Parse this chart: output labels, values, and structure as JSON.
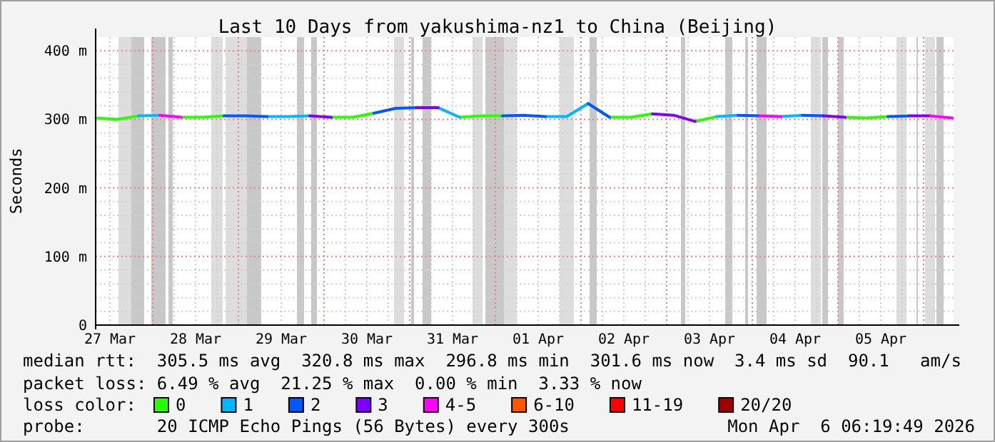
{
  "chart_data": {
    "type": "line",
    "title": "Last 10 Days from yakushima-nz1 to China (Beijing)",
    "ylabel": "Seconds",
    "x": [
      "2026-03-27T08:00",
      "2026-03-27T14:00",
      "2026-03-27T20:00",
      "2026-03-28T02:00",
      "2026-03-28T08:00",
      "2026-03-28T14:00",
      "2026-03-28T20:00",
      "2026-03-29T02:00",
      "2026-03-29T08:00",
      "2026-03-29T14:00",
      "2026-03-29T20:00",
      "2026-03-30T02:00",
      "2026-03-30T08:00",
      "2026-03-30T14:00",
      "2026-03-30T20:00",
      "2026-03-31T02:00",
      "2026-03-31T08:00",
      "2026-03-31T14:00",
      "2026-03-31T20:00",
      "2026-04-01T02:00",
      "2026-04-01T08:00",
      "2026-04-01T14:00",
      "2026-04-01T20:00",
      "2026-04-02T02:00",
      "2026-04-02T08:00",
      "2026-04-02T14:00",
      "2026-04-02T20:00",
      "2026-04-03T02:00",
      "2026-04-03T08:00",
      "2026-04-03T14:00",
      "2026-04-03T20:00",
      "2026-04-04T02:00",
      "2026-04-04T08:00",
      "2026-04-04T14:00",
      "2026-04-04T20:00",
      "2026-04-05T02:00",
      "2026-04-05T08:00",
      "2026-04-05T14:00",
      "2026-04-05T20:00",
      "2026-04-06T02:00",
      "2026-04-06T08:00"
    ],
    "series": [
      {
        "name": "0",
        "color": "#26ff00",
        "values": [
          302,
          300,
          305,
          null,
          303,
          303,
          305,
          null,
          null,
          null,
          null,
          303,
          303,
          309,
          null,
          null,
          null,
          303,
          305,
          305,
          null,
          null,
          null,
          null,
          303,
          303,
          308,
          null,
          297,
          304,
          null,
          null,
          null,
          null,
          null,
          303,
          302,
          304,
          null,
          null,
          null
        ]
      },
      {
        "name": "1",
        "color": "#00b8ff",
        "values": [
          null,
          null,
          305,
          306,
          null,
          null,
          null,
          null,
          304,
          304,
          305,
          null,
          null,
          null,
          null,
          null,
          317,
          303,
          null,
          null,
          null,
          304,
          304,
          323,
          null,
          null,
          null,
          null,
          null,
          304,
          306,
          null,
          304,
          306,
          null,
          null,
          null,
          null,
          null,
          null,
          null
        ]
      },
      {
        "name": "2",
        "color": "#0059ff",
        "values": [
          null,
          null,
          null,
          null,
          null,
          null,
          305,
          305,
          304,
          null,
          null,
          null,
          null,
          309,
          316,
          317,
          null,
          null,
          null,
          305,
          306,
          304,
          null,
          323,
          303,
          null,
          null,
          null,
          null,
          null,
          306,
          305,
          null,
          306,
          305,
          null,
          null,
          304,
          305,
          null,
          null
        ]
      },
      {
        "name": "3",
        "color": "#7e00ff",
        "values": [
          null,
          null,
          null,
          null,
          null,
          null,
          null,
          null,
          null,
          null,
          305,
          303,
          null,
          null,
          null,
          317,
          317,
          null,
          null,
          null,
          null,
          null,
          null,
          null,
          null,
          null,
          308,
          306,
          297,
          null,
          null,
          null,
          null,
          null,
          305,
          303,
          null,
          null,
          305,
          305,
          null
        ]
      },
      {
        "name": "4-5",
        "color": "#ff00ff",
        "values": [
          null,
          null,
          null,
          306,
          303,
          null,
          null,
          null,
          null,
          null,
          null,
          null,
          null,
          null,
          null,
          null,
          null,
          null,
          null,
          null,
          null,
          null,
          null,
          null,
          null,
          null,
          null,
          null,
          null,
          null,
          null,
          305,
          304,
          null,
          null,
          null,
          null,
          null,
          null,
          305,
          302
        ]
      },
      {
        "name": "6-10",
        "color": "#ff5500",
        "values": [
          null,
          null,
          null,
          null,
          null,
          null,
          null,
          null,
          null,
          null,
          null,
          null,
          null,
          null,
          null,
          null,
          null,
          null,
          null,
          null,
          null,
          null,
          null,
          null,
          null,
          null,
          null,
          null,
          null,
          null,
          null,
          null,
          null,
          null,
          null,
          null,
          null,
          null,
          null,
          null,
          null
        ]
      },
      {
        "name": "11-19",
        "color": "#ff0000",
        "values": [
          null,
          null,
          null,
          null,
          null,
          null,
          null,
          null,
          null,
          null,
          null,
          null,
          null,
          null,
          null,
          null,
          null,
          null,
          null,
          null,
          null,
          null,
          null,
          null,
          null,
          null,
          null,
          null,
          null,
          null,
          null,
          null,
          null,
          null,
          null,
          null,
          null,
          null,
          null,
          null,
          null
        ]
      },
      {
        "name": "20/20",
        "color": "#a10000",
        "values": [
          null,
          null,
          null,
          null,
          null,
          null,
          null,
          null,
          null,
          null,
          null,
          null,
          null,
          null,
          null,
          null,
          null,
          null,
          null,
          null,
          null,
          null,
          null,
          null,
          null,
          null,
          null,
          null,
          null,
          null,
          null,
          null,
          null,
          null,
          null,
          null,
          null,
          null,
          null,
          null,
          null
        ]
      }
    ],
    "xlim": [
      "2026-03-27T08:00",
      "2026-04-06T08:24"
    ],
    "xticks": [
      {
        "value": "2026-03-27T12:00",
        "label": "27 Mar"
      },
      {
        "value": "2026-03-28T00:00",
        "label": null
      },
      {
        "value": "2026-03-28T12:00",
        "label": "28 Mar"
      },
      {
        "value": "2026-03-29T00:00",
        "label": null
      },
      {
        "value": "2026-03-29T12:00",
        "label": "29 Mar"
      },
      {
        "value": "2026-03-30T00:00",
        "label": null
      },
      {
        "value": "2026-03-30T12:00",
        "label": "30 Mar"
      },
      {
        "value": "2026-03-31T00:00",
        "label": null
      },
      {
        "value": "2026-03-31T12:00",
        "label": "31 Mar"
      },
      {
        "value": "2026-04-01T00:00",
        "label": null
      },
      {
        "value": "2026-04-01T12:00",
        "label": "01 Apr"
      },
      {
        "value": "2026-04-02T00:00",
        "label": null
      },
      {
        "value": "2026-04-02T12:00",
        "label": "02 Apr"
      },
      {
        "value": "2026-04-03T00:00",
        "label": null
      },
      {
        "value": "2026-04-03T12:00",
        "label": "03 Apr"
      },
      {
        "value": "2026-04-04T00:00",
        "label": null
      },
      {
        "value": "2026-04-04T12:00",
        "label": "04 Apr"
      },
      {
        "value": "2026-04-05T00:00",
        "label": null
      },
      {
        "value": "2026-04-05T12:00",
        "label": "05 Apr"
      },
      {
        "value": "2026-04-06T00:00",
        "label": null
      }
    ],
    "ylim": [
      0,
      420
    ],
    "yticks": [
      {
        "value": 0,
        "label": "0"
      },
      {
        "value": 100,
        "label": "100 m"
      },
      {
        "value": 200,
        "label": "200 m"
      },
      {
        "value": 300,
        "label": "300 m"
      },
      {
        "value": 400,
        "label": "400 m"
      }
    ],
    "grid": true,
    "legend": "bottom",
    "legend_title": "loss color:",
    "bands": [
      {
        "axis": "x",
        "from": "2026-03-27T14:24",
        "to": "2026-03-27T18:00",
        "color": "#dddddd"
      },
      {
        "axis": "x",
        "from": "2026-03-27T18:00",
        "to": "2026-03-27T21:36",
        "color": "#c8c8c8"
      },
      {
        "axis": "x",
        "from": "2026-03-27T23:36",
        "to": "2026-03-28T03:36",
        "color": "#c8c8c8"
      },
      {
        "axis": "x",
        "from": "2026-03-28T04:24",
        "to": "2026-03-28T05:36",
        "color": "#c8c8c8"
      },
      {
        "axis": "x",
        "from": "2026-03-28T16:24",
        "to": "2026-03-28T19:36",
        "color": "#dddddd"
      },
      {
        "axis": "x",
        "from": "2026-03-28T20:24",
        "to": "2026-03-29T02:24",
        "color": "#dddddd"
      },
      {
        "axis": "x",
        "from": "2026-03-29T02:24",
        "to": "2026-03-29T06:24",
        "color": "#c8c8c8"
      },
      {
        "axis": "x",
        "from": "2026-03-29T16:24",
        "to": "2026-03-29T18:24",
        "color": "#c8c8c8"
      },
      {
        "axis": "x",
        "from": "2026-03-29T20:24",
        "to": "2026-03-29T22:00",
        "color": "#c8c8c8"
      },
      {
        "axis": "x",
        "from": "2026-03-30T19:36",
        "to": "2026-03-30T22:24",
        "color": "#dddddd"
      },
      {
        "axis": "x",
        "from": "2026-03-31T00:24",
        "to": "2026-03-31T01:12",
        "color": "#c8c8c8"
      },
      {
        "axis": "x",
        "from": "2026-03-31T03:36",
        "to": "2026-03-31T06:00",
        "color": "#c8c8c8"
      },
      {
        "axis": "x",
        "from": "2026-03-31T17:36",
        "to": "2026-03-31T20:24",
        "color": "#dddddd"
      },
      {
        "axis": "x",
        "from": "2026-03-31T21:12",
        "to": "2026-04-01T02:24",
        "color": "#c8c8c8"
      },
      {
        "axis": "x",
        "from": "2026-04-01T02:24",
        "to": "2026-04-01T06:00",
        "color": "#dddddd"
      },
      {
        "axis": "x",
        "from": "2026-04-01T18:00",
        "to": "2026-04-01T22:00",
        "color": "#dddddd"
      },
      {
        "axis": "x",
        "from": "2026-04-02T02:24",
        "to": "2026-04-02T04:24",
        "color": "#c8c8c8"
      },
      {
        "axis": "x",
        "from": "2026-04-03T04:00",
        "to": "2026-04-03T05:12",
        "color": "#c8c8c8"
      },
      {
        "axis": "x",
        "from": "2026-04-03T16:24",
        "to": "2026-04-03T18:24",
        "color": "#c8c8c8"
      },
      {
        "axis": "x",
        "from": "2026-04-03T22:00",
        "to": "2026-04-03T22:48",
        "color": "#c8c8c8"
      },
      {
        "axis": "x",
        "from": "2026-04-04T01:12",
        "to": "2026-04-04T04:00",
        "color": "#c8c8c8"
      },
      {
        "axis": "x",
        "from": "2026-04-04T16:24",
        "to": "2026-04-04T19:12",
        "color": "#dddddd"
      },
      {
        "axis": "x",
        "from": "2026-04-04T19:36",
        "to": "2026-04-04T21:12",
        "color": "#c8c8c8"
      },
      {
        "axis": "x",
        "from": "2026-04-05T00:00",
        "to": "2026-04-05T01:36",
        "color": "#c8c8c8"
      },
      {
        "axis": "x",
        "from": "2026-04-05T16:24",
        "to": "2026-04-05T19:12",
        "color": "#dddddd"
      },
      {
        "axis": "x",
        "from": "2026-04-05T22:00",
        "to": "2026-04-05T22:24",
        "color": "#c8c8c8"
      },
      {
        "axis": "x",
        "from": "2026-04-06T00:24",
        "to": "2026-04-06T03:12",
        "color": "#dddddd"
      },
      {
        "axis": "x",
        "from": "2026-04-06T03:36",
        "to": "2026-04-06T05:36",
        "color": "#c8c8c8"
      }
    ],
    "annotations": [
      "median rtt:  305.5 ms avg  320.8 ms max  296.8 ms min  301.6 ms now  3.4 ms sd  90.1   am/s",
      "packet loss: 6.49 % avg  21.25 % max  0.00 % min  3.33 % now",
      "probe:       20 ICMP Echo Pings (56 Bytes) every 300s",
      "Mon Apr  6 06:19:49 2026"
    ]
  }
}
